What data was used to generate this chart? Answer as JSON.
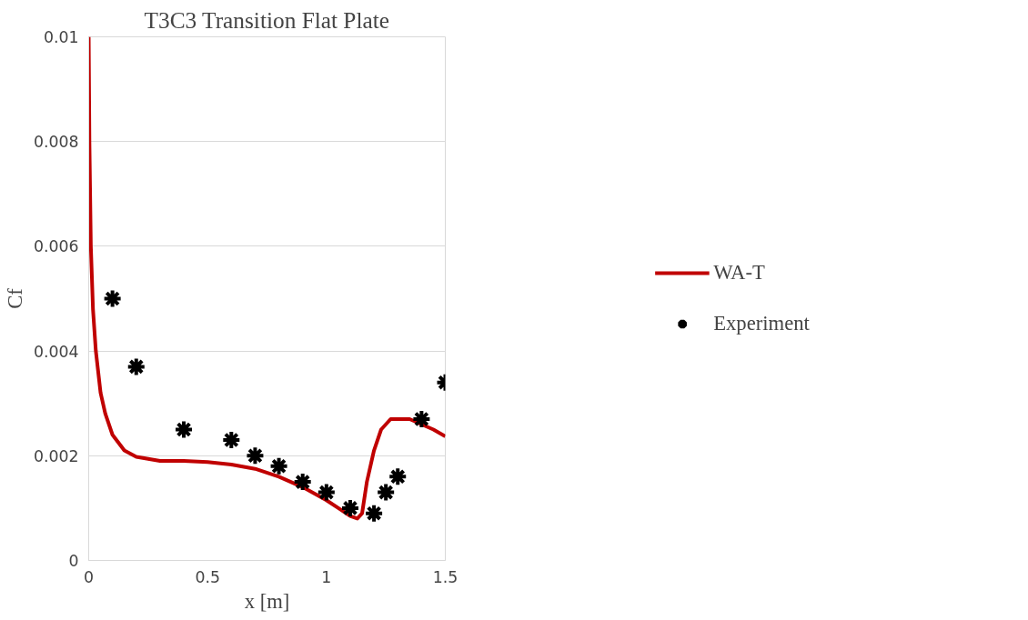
{
  "chart_data": {
    "type": "line",
    "title": "T3C3 Transition Flat Plate",
    "xlabel": "x [m]",
    "ylabel": "Cf",
    "xlim": [
      0,
      1.5
    ],
    "xticks": [
      0,
      0.5,
      1,
      1.5
    ],
    "ylim": [
      0,
      0.01
    ],
    "yticks": [
      0,
      0.002,
      0.004,
      0.006,
      0.008,
      0.01
    ],
    "grid": "y",
    "legend": "right",
    "series": [
      {
        "name": "WA-T",
        "color": "#c00000",
        "line_style": "solid",
        "marker": "none",
        "x": [
          0,
          0.003,
          0.009,
          0.018,
          0.03,
          0.05,
          0.07,
          0.1,
          0.15,
          0.2,
          0.3,
          0.4,
          0.5,
          0.6,
          0.7,
          0.8,
          0.9,
          1.0,
          1.05,
          1.1,
          1.13,
          1.15,
          1.17,
          1.2,
          1.23,
          1.27,
          1.3,
          1.35,
          1.4,
          1.45,
          1.5
        ],
        "values": [
          0.01,
          0.008,
          0.006,
          0.0048,
          0.004,
          0.0032,
          0.0028,
          0.0024,
          0.0021,
          0.00198,
          0.0019,
          0.0019,
          0.00188,
          0.00183,
          0.00175,
          0.0016,
          0.0014,
          0.00115,
          0.001,
          0.00085,
          0.0008,
          0.0009,
          0.0015,
          0.0021,
          0.0025,
          0.0027,
          0.0027,
          0.0027,
          0.0026,
          0.0025,
          0.00237
        ]
      },
      {
        "name": "Experiment",
        "type": "scatter",
        "color": "#000000",
        "marker": "cross",
        "x": [
          0.1,
          0.2,
          0.4,
          0.6,
          0.7,
          0.8,
          0.9,
          1.0,
          1.1,
          1.2,
          1.25,
          1.3,
          1.4,
          1.5
        ],
        "values": [
          0.005,
          0.0037,
          0.0025,
          0.0023,
          0.002,
          0.0018,
          0.0015,
          0.0013,
          0.001,
          0.0009,
          0.0013,
          0.0016,
          0.0027,
          0.0034
        ]
      }
    ]
  }
}
